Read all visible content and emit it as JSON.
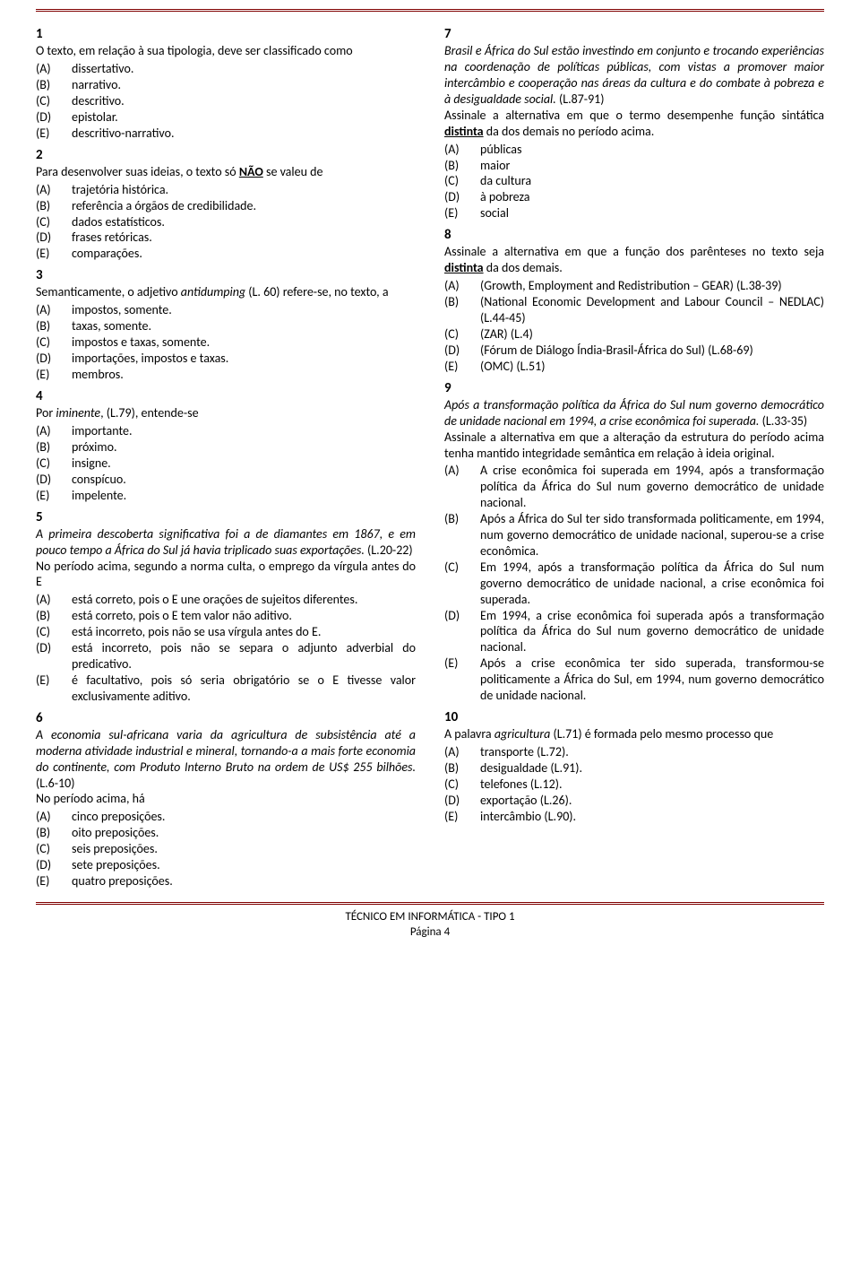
{
  "footer": {
    "title": "TÉCNICO EM INFORMÁTICA - TIPO 1",
    "page": "Página 4"
  },
  "col_left": [
    {
      "num": "1",
      "stem_parts": [
        {
          "t": "O texto, em relação à sua tipologia, deve ser classificado como"
        }
      ],
      "opts": [
        {
          "l": "(A)",
          "t": "dissertativo."
        },
        {
          "l": "(B)",
          "t": "narrativo."
        },
        {
          "l": "(C)",
          "t": "descritivo."
        },
        {
          "l": "(D)",
          "t": "epistolar."
        },
        {
          "l": "(E)",
          "t": "descritivo-narrativo."
        }
      ]
    },
    {
      "num": "2",
      "stem_parts": [
        {
          "t": "Para desenvolver suas ideias, o texto só "
        },
        {
          "t": "NÃO",
          "bold": true,
          "under": true
        },
        {
          "t": " se valeu de"
        }
      ],
      "opts": [
        {
          "l": "(A)",
          "t": "trajetória histórica."
        },
        {
          "l": "(B)",
          "t": "referência a órgãos de credibilidade."
        },
        {
          "l": "(C)",
          "t": "dados estatísticos."
        },
        {
          "l": "(D)",
          "t": "frases retóricas."
        },
        {
          "l": "(E)",
          "t": "comparações."
        }
      ]
    },
    {
      "num": "3",
      "stem_parts": [
        {
          "t": "Semanticamente, o adjetivo "
        },
        {
          "t": "antidumping",
          "italic": true
        },
        {
          "t": " (L. 60) refere-se, no texto, a"
        }
      ],
      "opts": [
        {
          "l": "(A)",
          "t": "impostos, somente."
        },
        {
          "l": "(B)",
          "t": "taxas, somente."
        },
        {
          "l": "(C)",
          "t": "impostos e taxas, somente."
        },
        {
          "l": "(D)",
          "t": "importações, impostos e taxas."
        },
        {
          "l": "(E)",
          "t": "membros."
        }
      ]
    },
    {
      "num": "4",
      "stem_parts": [
        {
          "t": "Por "
        },
        {
          "t": "iminente",
          "italic": true
        },
        {
          "t": ", (L.79), entende-se"
        }
      ],
      "opts": [
        {
          "l": "(A)",
          "t": "importante."
        },
        {
          "l": "(B)",
          "t": "próximo."
        },
        {
          "l": "(C)",
          "t": "insigne."
        },
        {
          "l": "(D)",
          "t": "conspícuo."
        },
        {
          "l": "(E)",
          "t": "impelente."
        }
      ]
    },
    {
      "num": "5",
      "stem_parts": [
        {
          "t": "A primeira descoberta significativa foi a de diamantes em 1867, e em pouco tempo a África do Sul já havia triplicado suas exportações.",
          "italic": true
        },
        {
          "t": " (L.20-22)"
        }
      ],
      "stem2": "No período acima, segundo a norma culta, o emprego da vírgula antes do E",
      "opts": [
        {
          "l": "(A)",
          "t": "está correto, pois o E une orações de sujeitos diferentes."
        },
        {
          "l": "(B)",
          "t": "está correto, pois o E tem valor não aditivo."
        },
        {
          "l": "(C)",
          "t": "está incorreto, pois não se usa vírgula antes do E."
        },
        {
          "l": "(D)",
          "t": "está incorreto, pois não se separa o adjunto adverbial do predicativo."
        },
        {
          "l": "(E)",
          "t": "é facultativo, pois só seria obrigatório se o E tivesse valor exclusivamente aditivo."
        }
      ]
    },
    {
      "num": "6",
      "stem_parts": [
        {
          "t": "A economia sul-africana varia da agricultura de subsistência até a moderna atividade industrial e mineral, tornando-a a mais forte economia do continente, com Produto Interno Bruto na ordem de US$ 255 bilhões.",
          "italic": true
        },
        {
          "t": " (L.6-10)"
        }
      ],
      "stem2": "No período acima, há",
      "opts": [
        {
          "l": "(A)",
          "t": "cinco preposições."
        },
        {
          "l": "(B)",
          "t": "oito preposições."
        },
        {
          "l": "(C)",
          "t": "seis preposições."
        },
        {
          "l": "(D)",
          "t": "sete preposições."
        },
        {
          "l": "(E)",
          "t": "quatro preposições."
        }
      ]
    }
  ],
  "col_right": [
    {
      "num": "7",
      "stem_parts": [
        {
          "t": "Brasil e África do Sul estão investindo em conjunto e trocando experiências na coordenação de políticas públicas, com vistas a promover maior intercâmbio e cooperação nas áreas da cultura e do combate à pobreza e à desigualdade social.",
          "italic": true
        },
        {
          "t": " (L.87-91)"
        }
      ],
      "stem2_parts": [
        {
          "t": "Assinale a alternativa em que o termo desempenhe função sintática "
        },
        {
          "t": "distinta",
          "bold": true,
          "under": true
        },
        {
          "t": " da dos demais no período acima."
        }
      ],
      "opts": [
        {
          "l": "(A)",
          "t": "públicas"
        },
        {
          "l": "(B)",
          "t": "maior"
        },
        {
          "l": "(C)",
          "t": "da cultura"
        },
        {
          "l": "(D)",
          "t": "à pobreza"
        },
        {
          "l": "(E)",
          "t": "social"
        }
      ]
    },
    {
      "num": "8",
      "stem_parts": [
        {
          "t": "Assinale a alternativa em que a função dos parênteses no texto seja "
        },
        {
          "t": "distinta",
          "bold": true,
          "under": true
        },
        {
          "t": " da dos demais."
        }
      ],
      "opts": [
        {
          "l": "(A)",
          "t": "(Growth, Employment and Redistribution – GEAR) (L.38-39)"
        },
        {
          "l": "(B)",
          "t": "(National Economic Development and Labour Council – NEDLAC) (L.44-45)"
        },
        {
          "l": "(C)",
          "t": "(ZAR) (L.4)"
        },
        {
          "l": "(D)",
          "t": "(Fórum de Diálogo Índia-Brasil-África do Sul) (L.68-69)"
        },
        {
          "l": "(E)",
          "t": "(OMC) (L.51)"
        }
      ]
    },
    {
      "num": "9",
      "stem_parts": [
        {
          "t": "Após a transformação política da África do Sul num governo democrático de unidade nacional em 1994, a crise econômica foi superada.",
          "italic": true
        },
        {
          "t": " (L.33-35)"
        }
      ],
      "stem2": "Assinale a alternativa em que a alteração da estrutura do período acima tenha mantido integridade semântica em relação à ideia original.",
      "opts": [
        {
          "l": "(A)",
          "t": "A crise econômica foi superada em 1994, após a transformação política da África do Sul num governo democrático de unidade nacional."
        },
        {
          "l": "(B)",
          "t": "Após a África do Sul ter sido transformada politicamente, em 1994, num governo democrático de unidade nacional, superou-se a crise econômica."
        },
        {
          "l": "(C)",
          "t": "Em 1994, após a transformação política da África do Sul num governo democrático de unidade nacional, a crise econômica foi superada."
        },
        {
          "l": "(D)",
          "t": "Em 1994, a crise econômica foi superada após a transformação política da África do Sul num governo democrático de unidade nacional."
        },
        {
          "l": "(E)",
          "t": "Após a crise econômica ter sido superada, transformou-se politicamente a África do Sul, em 1994, num governo democrático de unidade nacional."
        }
      ]
    },
    {
      "num": "10",
      "stem_parts": [
        {
          "t": "A palavra "
        },
        {
          "t": "agricultura",
          "italic": true
        },
        {
          "t": " (L.71) é formada pelo mesmo processo que"
        }
      ],
      "opts": [
        {
          "l": "(A)",
          "t": "transporte (L.72)."
        },
        {
          "l": "(B)",
          "t": "desigualdade (L.91)."
        },
        {
          "l": "(C)",
          "t": "telefones (L.12)."
        },
        {
          "l": "(D)",
          "t": "exportação (L.26)."
        },
        {
          "l": "(E)",
          "t": "intercâmbio (L.90)."
        }
      ]
    }
  ]
}
